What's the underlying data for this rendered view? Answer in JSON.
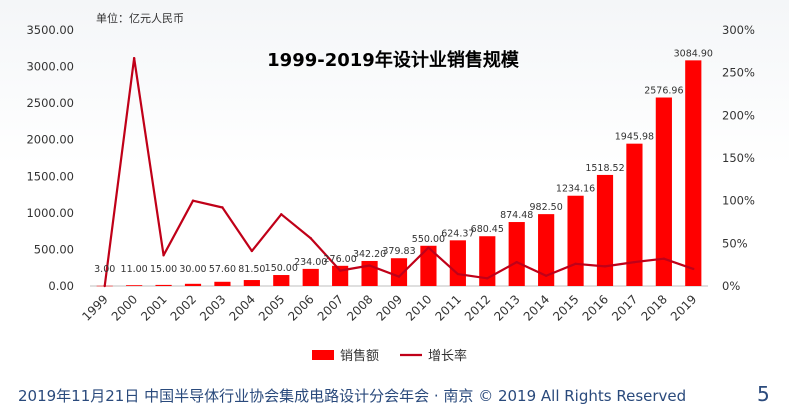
{
  "footer": {
    "text": "2019年11月21日 中国半导体行业协会集成电路设计分会年会 · 南京 © 2019 All Rights Reserved",
    "page_number": "5"
  },
  "colors": {
    "bar": "#ff0000",
    "line": "#c00018",
    "text": "#333333"
  },
  "chart_data": {
    "type": "bar",
    "title": "1999-2019年设计业销售规模",
    "unit_label": "单位：亿元人民币",
    "categories": [
      "1999",
      "2000",
      "2001",
      "2002",
      "2003",
      "2004",
      "2005",
      "2006",
      "2007",
      "2008",
      "2009",
      "2010",
      "2011",
      "2012",
      "2013",
      "2014",
      "2015",
      "2016",
      "2017",
      "2018",
      "2019"
    ],
    "series": [
      {
        "name": "销售额",
        "type": "bar",
        "axis": "left",
        "values": [
          3.0,
          11.0,
          15.0,
          30.0,
          57.6,
          81.5,
          150.0,
          234.0,
          276.0,
          342.2,
          379.83,
          550.0,
          624.37,
          680.45,
          874.48,
          982.5,
          1234.16,
          1518.52,
          1945.98,
          2576.96,
          3084.9
        ],
        "labels": [
          "3.00",
          "11.00",
          "15.00",
          "30.00",
          "57.60",
          "81.50",
          "150.00",
          "234.00",
          "276.00",
          "342.20",
          "379.83",
          "550.00",
          "624.37",
          "680.45",
          "874.48",
          "982.50",
          "1234.16",
          "1518.52",
          "1945.98",
          "2576.96",
          "3084.90"
        ]
      },
      {
        "name": "增长率",
        "type": "line",
        "axis": "right",
        "values": [
          0,
          267,
          36,
          100,
          92,
          41,
          84,
          56,
          18,
          24,
          11,
          45,
          14,
          9,
          28,
          12,
          26,
          23,
          28,
          32,
          20
        ]
      }
    ],
    "y_left": {
      "ylim": [
        0,
        3500
      ],
      "ticks": [
        "0.00",
        "500.00",
        "1000.00",
        "1500.00",
        "2000.00",
        "2500.00",
        "3000.00",
        "3500.00"
      ]
    },
    "y_right": {
      "ylim": [
        0,
        300
      ],
      "ticks": [
        "0%",
        "50%",
        "100%",
        "150%",
        "200%",
        "250%",
        "300%"
      ]
    },
    "legend_position": "bottom",
    "grid": false
  }
}
